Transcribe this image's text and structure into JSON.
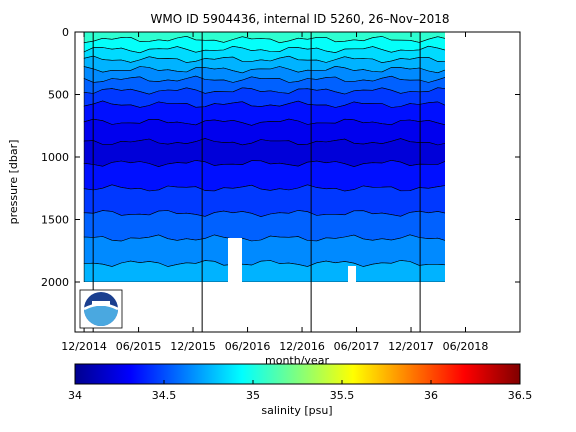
{
  "chart_data": {
    "type": "heatmap",
    "title": "WMO ID 5904436, internal ID 5260, 26–Nov–2018",
    "xlabel": "month/year",
    "ylabel": "pressure [dbar]",
    "x_ticks": [
      "12/2014",
      "06/2015",
      "12/2015",
      "06/2016",
      "12/2016",
      "06/2017",
      "12/2017",
      "06/2018"
    ],
    "y_ticks": [
      0,
      500,
      1000,
      1500,
      2000
    ],
    "ylim": [
      2400,
      0
    ],
    "y_reversed": true,
    "xlim": [
      "2014-11",
      "2018-12"
    ],
    "data_extent": {
      "start": "2014-12",
      "end": "2018-05",
      "max_pressure": 2000
    },
    "year_marks": [
      "2015-01",
      "2016-01",
      "2017-01",
      "2018-01"
    ],
    "colorbar": {
      "label": "salinity [psu]",
      "ticks": [
        "34",
        "34.5",
        "35",
        "35.5",
        "36",
        "36.5"
      ],
      "range": [
        34,
        36.5
      ],
      "colormap": "jet"
    },
    "salinity_layers": [
      {
        "top": 0,
        "bottom": 60,
        "salinity": 35.05
      },
      {
        "top": 60,
        "bottom": 140,
        "salinity": 34.95
      },
      {
        "top": 140,
        "bottom": 220,
        "salinity": 34.85
      },
      {
        "top": 220,
        "bottom": 300,
        "salinity": 34.75
      },
      {
        "top": 300,
        "bottom": 380,
        "salinity": 34.65
      },
      {
        "top": 380,
        "bottom": 470,
        "salinity": 34.55
      },
      {
        "top": 470,
        "bottom": 580,
        "salinity": 34.45
      },
      {
        "top": 580,
        "bottom": 720,
        "salinity": 34.35
      },
      {
        "top": 720,
        "bottom": 880,
        "salinity": 34.27
      },
      {
        "top": 880,
        "bottom": 1050,
        "salinity": 34.22
      },
      {
        "top": 1050,
        "bottom": 1250,
        "salinity": 34.35
      },
      {
        "top": 1250,
        "bottom": 1450,
        "salinity": 34.45
      },
      {
        "top": 1450,
        "bottom": 1650,
        "salinity": 34.55
      },
      {
        "top": 1650,
        "bottom": 1850,
        "salinity": 34.65
      },
      {
        "top": 1850,
        "bottom": 2000,
        "salinity": 34.75
      }
    ],
    "logo": "noaa-logo"
  }
}
